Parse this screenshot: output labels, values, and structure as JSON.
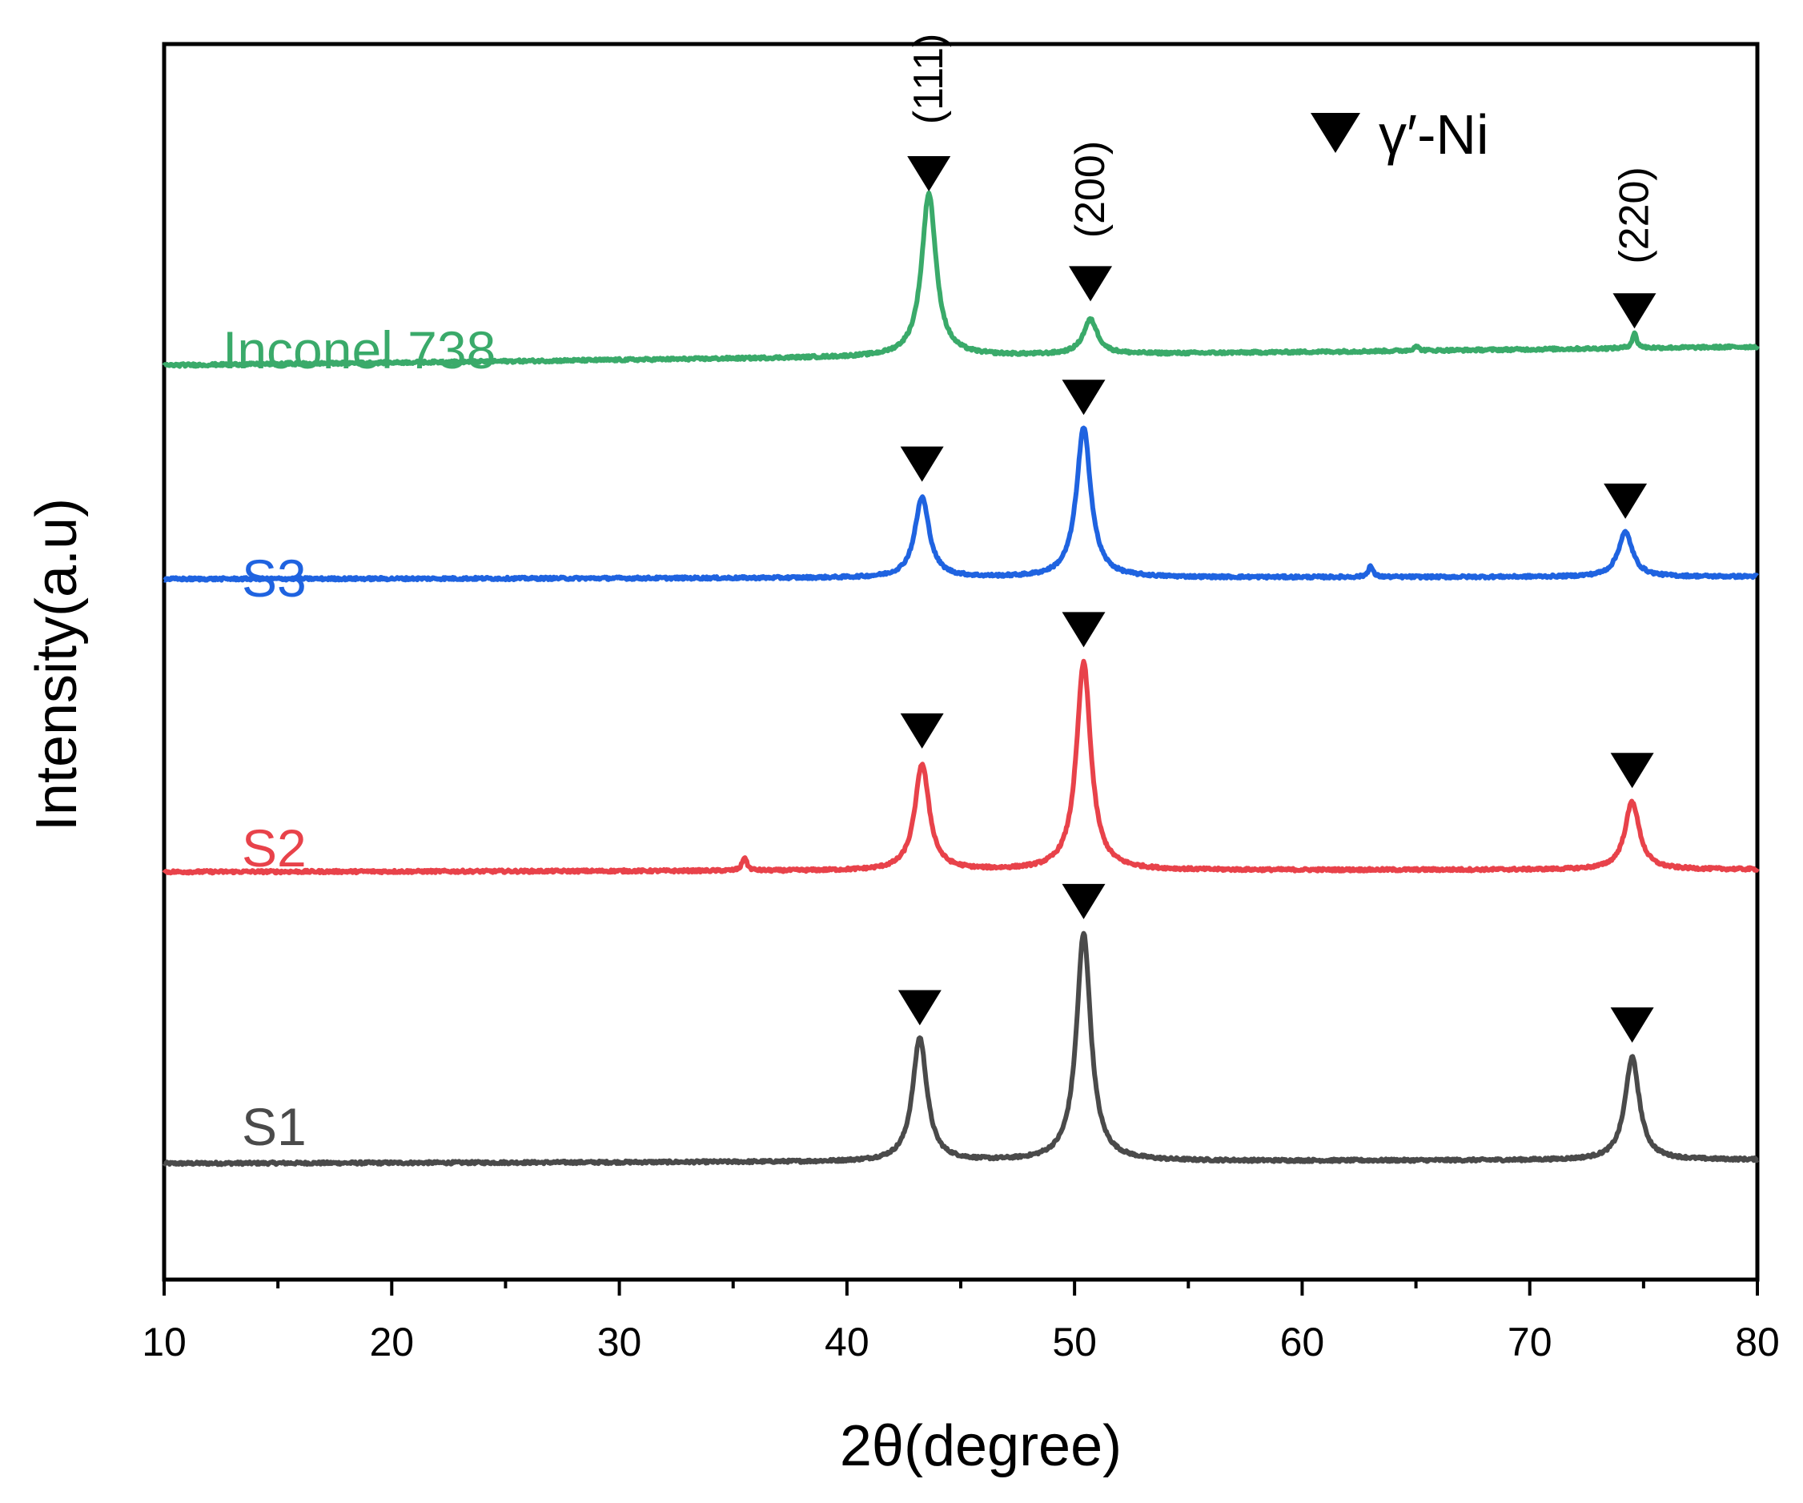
{
  "chart_data": {
    "type": "line",
    "title": "",
    "xlabel": "2θ(degree)",
    "ylabel": "Intensity(a.u)",
    "xlim": [
      10,
      80
    ],
    "ylim": [
      0,
      100
    ],
    "xticks": [
      10,
      20,
      30,
      40,
      50,
      60,
      70,
      80
    ],
    "y_ticks_shown": false,
    "grid": false,
    "legend": {
      "position": "top-right",
      "symbol": "▼",
      "label": "γ′-Ni"
    },
    "series": [
      {
        "name": "S1",
        "color": "#4a4a4a",
        "baseline": [
          [
            10,
            9.4
          ],
          [
            80,
            9.7
          ]
        ],
        "peaks": [
          {
            "x": 43.2,
            "height": 10.0,
            "hkl": "(111)"
          },
          {
            "x": 50.4,
            "height": 18.4,
            "hkl": "(200)"
          },
          {
            "x": 74.5,
            "height": 8.3,
            "hkl": "(220)"
          }
        ]
      },
      {
        "name": "S2",
        "color": "#e8424a",
        "baseline": [
          [
            10,
            33.0
          ],
          [
            80,
            33.2
          ]
        ],
        "peaks": [
          {
            "x": 35.5,
            "height": 1.1,
            "hkl": ""
          },
          {
            "x": 43.3,
            "height": 8.6,
            "hkl": "(111)"
          },
          {
            "x": 50.4,
            "height": 16.8,
            "hkl": "(200)"
          },
          {
            "x": 74.5,
            "height": 5.5,
            "hkl": "(220)"
          }
        ]
      },
      {
        "name": "S3",
        "color": "#1f63e0",
        "baseline": [
          [
            10,
            56.7
          ],
          [
            80,
            56.9
          ]
        ],
        "peaks": [
          {
            "x": 43.3,
            "height": 6.5,
            "hkl": "(111)"
          },
          {
            "x": 50.4,
            "height": 12.1,
            "hkl": "(200)"
          },
          {
            "x": 63.0,
            "height": 0.9,
            "hkl": ""
          },
          {
            "x": 74.2,
            "height": 3.6,
            "hkl": "(220)"
          }
        ]
      },
      {
        "name": "Inconel 738",
        "color": "#3aaa6a",
        "baseline": [
          [
            10,
            74.0
          ],
          [
            80,
            75.5
          ]
        ],
        "peaks": [
          {
            "x": 43.6,
            "height": 13.2,
            "hkl": "(111)"
          },
          {
            "x": 50.7,
            "height": 2.8,
            "hkl": "(200)"
          },
          {
            "x": 65.0,
            "height": 0.4,
            "hkl": ""
          },
          {
            "x": 74.6,
            "height": 1.2,
            "hkl": "(220)"
          }
        ]
      }
    ],
    "markers": {
      "symbol": "▼",
      "meaning": "γ′-Ni",
      "positions": [
        {
          "series": "S1",
          "x": 43.2,
          "y": 22.0
        },
        {
          "series": "S1",
          "x": 50.4,
          "y": 30.6
        },
        {
          "series": "S1",
          "x": 74.5,
          "y": 20.6
        },
        {
          "series": "S2",
          "x": 43.3,
          "y": 44.4
        },
        {
          "series": "S2",
          "x": 50.4,
          "y": 52.6
        },
        {
          "series": "S2",
          "x": 74.5,
          "y": 41.2
        },
        {
          "series": "S3",
          "x": 43.3,
          "y": 66.0
        },
        {
          "series": "S3",
          "x": 50.4,
          "y": 71.4
        },
        {
          "series": "S3",
          "x": 74.2,
          "y": 63.0
        },
        {
          "series": "Inconel 738",
          "x": 43.6,
          "y": 89.5
        },
        {
          "series": "Inconel 738",
          "x": 50.7,
          "y": 80.6
        },
        {
          "series": "Inconel 738",
          "x": 74.6,
          "y": 78.4
        }
      ]
    },
    "annotations": [
      {
        "text": "(111)",
        "x": 43.6,
        "y": 93.5
      },
      {
        "text": "(200)",
        "x": 50.7,
        "y": 84.3
      },
      {
        "text": "(220)",
        "x": 74.6,
        "y": 82.2
      }
    ]
  }
}
